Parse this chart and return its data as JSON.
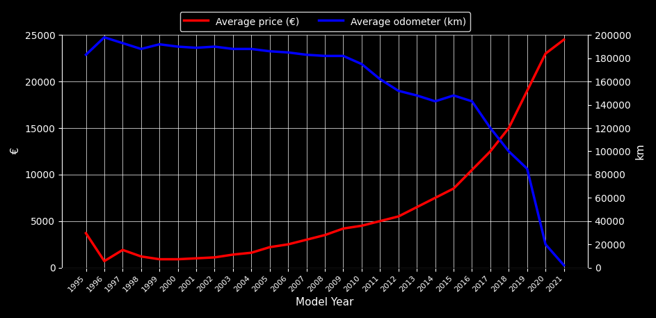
{
  "years": [
    1995,
    1996,
    1997,
    1998,
    1999,
    2000,
    2001,
    2002,
    2003,
    2004,
    2005,
    2006,
    2007,
    2008,
    2009,
    2010,
    2011,
    2012,
    2013,
    2014,
    2015,
    2016,
    2017,
    2018,
    2019,
    2020,
    2021
  ],
  "avg_price": [
    3700,
    700,
    1900,
    1200,
    900,
    900,
    1000,
    1100,
    1400,
    1600,
    2200,
    2500,
    3000,
    3500,
    4200,
    4500,
    5000,
    5500,
    6500,
    7500,
    8500,
    10500,
    12500,
    15000,
    19000,
    23000,
    24500
  ],
  "avg_odometer": [
    183000,
    198000,
    193000,
    188000,
    192000,
    190000,
    189000,
    190000,
    188000,
    188000,
    186000,
    185000,
    183000,
    182000,
    182000,
    175000,
    162000,
    152000,
    148000,
    143000,
    148000,
    143000,
    120000,
    100000,
    85000,
    20000,
    2000
  ],
  "price_color": "#ff0000",
  "odometer_color": "#0000ff",
  "background_color": "#000000",
  "grid_color": "#ffffff",
  "text_color": "#ffffff",
  "title": "",
  "xlabel": "Model Year",
  "ylabel_left": "€",
  "ylabel_right": "km",
  "legend_price": "Average price (€)",
  "legend_odometer": "Average odometer (km)",
  "ylim_left": [
    0,
    25000
  ],
  "ylim_right": [
    0,
    200000
  ],
  "yticks_left": [
    0,
    5000,
    10000,
    15000,
    20000,
    25000
  ],
  "yticks_right": [
    0,
    20000,
    40000,
    60000,
    80000,
    100000,
    120000,
    140000,
    160000,
    180000,
    200000
  ]
}
